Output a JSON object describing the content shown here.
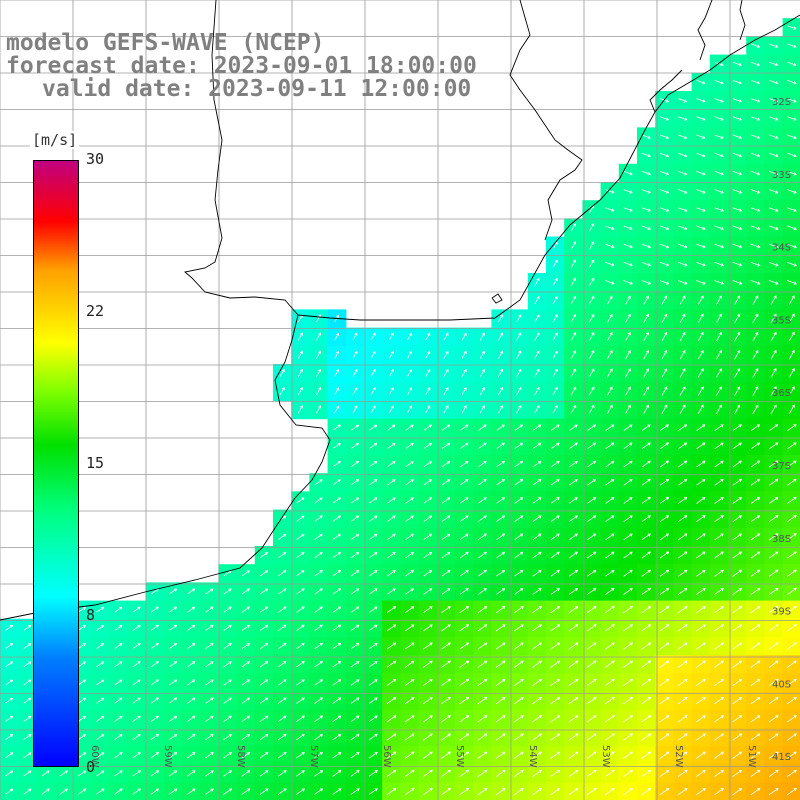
{
  "title": {
    "line1": "modelo GEFS-WAVE (NCEP)",
    "line2": "forecast date: 2023-09-01 18:00:00",
    "line3": "valid date: 2023-09-11 12:00:00"
  },
  "colorbar": {
    "unit": "[m/s]",
    "ticks": [
      "30",
      "22",
      "15",
      "8",
      "0"
    ],
    "tick_values": [
      30,
      22,
      15,
      8,
      0
    ],
    "min": 0,
    "max": 30,
    "colors": [
      "#0000ff",
      "#0080ff",
      "#00ffff",
      "#00ff80",
      "#00e000",
      "#80ff00",
      "#ffff00",
      "#ffa000",
      "#ff0000",
      "#c00080"
    ]
  },
  "map": {
    "lon_labels": [
      "60W",
      "59W",
      "58W",
      "57W",
      "56W",
      "55W",
      "54W",
      "53W",
      "52W",
      "51W"
    ],
    "lat_labels": [
      "32S",
      "33S",
      "34S",
      "35S",
      "36S",
      "37S",
      "38S",
      "39S",
      "40S",
      "41S"
    ],
    "lon_range": [
      -61,
      -50
    ],
    "lat_range": [
      -41.5,
      -30.5
    ],
    "land_color": "#ffffff",
    "grid_color": "#a0a0a0",
    "coast_color": "#000000"
  }
}
